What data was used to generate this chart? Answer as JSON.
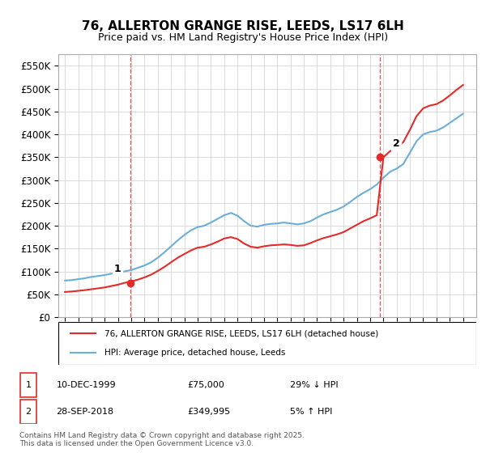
{
  "title": "76, ALLERTON GRANGE RISE, LEEDS, LS17 6LH",
  "subtitle": "Price paid vs. HM Land Registry's House Price Index (HPI)",
  "xlabel": "",
  "ylabel": "",
  "ylim": [
    0,
    575000
  ],
  "yticks": [
    0,
    50000,
    100000,
    150000,
    200000,
    250000,
    300000,
    350000,
    400000,
    450000,
    500000,
    550000
  ],
  "ytick_labels": [
    "£0",
    "£50K",
    "£100K",
    "£150K",
    "£200K",
    "£250K",
    "£300K",
    "£350K",
    "£400K",
    "£450K",
    "£500K",
    "£550K"
  ],
  "hpi_color": "#6baed6",
  "price_color": "#e32b2b",
  "marker_color": "#e32b2b",
  "dashed_line_color": "#e32b2b",
  "background_color": "#ffffff",
  "grid_color": "#cccccc",
  "sale1_x": 1999.95,
  "sale1_y": 75000,
  "sale1_label": "1",
  "sale2_x": 2018.75,
  "sale2_y": 349995,
  "sale2_label": "2",
  "legend_line1": "76, ALLERTON GRANGE RISE, LEEDS, LS17 6LH (detached house)",
  "legend_line2": "HPI: Average price, detached house, Leeds",
  "note1_label": "1",
  "note1_date": "10-DEC-1999",
  "note1_price": "£75,000",
  "note1_hpi": "29% ↓ HPI",
  "note2_label": "2",
  "note2_date": "28-SEP-2018",
  "note2_price": "£349,995",
  "note2_hpi": "5% ↑ HPI",
  "copyright": "Contains HM Land Registry data © Crown copyright and database right 2025.\nThis data is licensed under the Open Government Licence v3.0.",
  "xmin": 1994.5,
  "xmax": 2026.0
}
